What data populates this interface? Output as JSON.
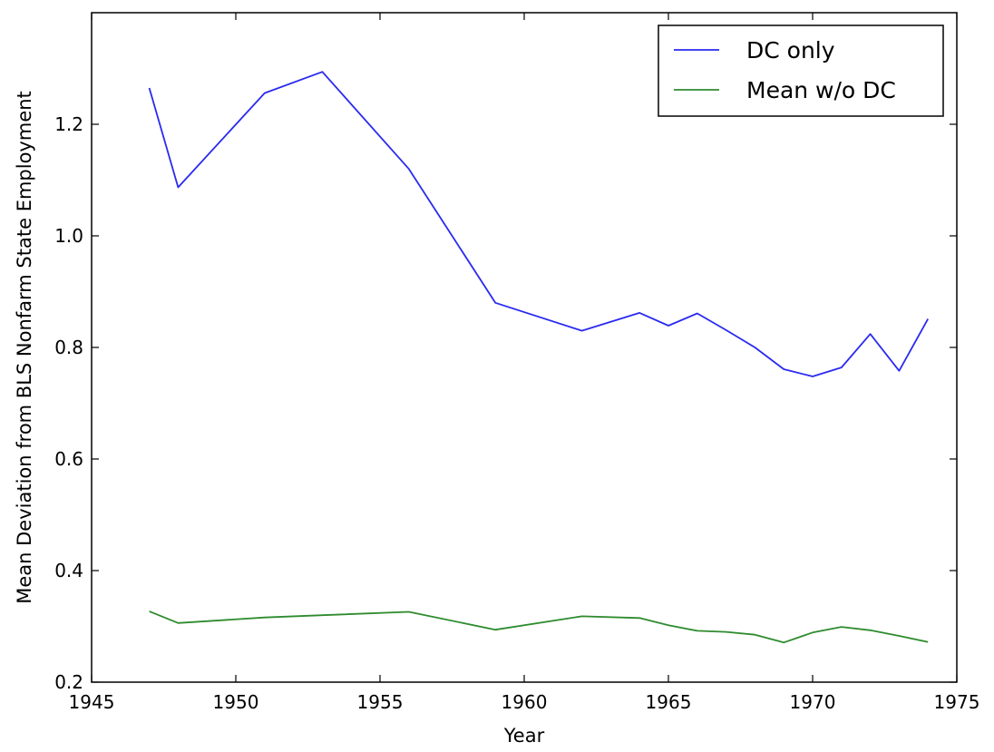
{
  "chart_data": {
    "type": "line",
    "xlabel": "Year",
    "ylabel": "Mean Deviation from BLS Nonfarm State Employment",
    "xlim": [
      1945,
      1975
    ],
    "ylim": [
      0.2,
      1.4
    ],
    "xticks": [
      1945,
      1950,
      1955,
      1960,
      1965,
      1970,
      1975
    ],
    "yticks": [
      0.2,
      0.4,
      0.6,
      0.8,
      1.0,
      1.2
    ],
    "ytick_labels": [
      "0.2",
      "0.4",
      "0.6",
      "0.8",
      "1.0",
      "1.2"
    ],
    "grid": false,
    "legend": "top-right",
    "series": [
      {
        "name": "DC only",
        "color": "#2a2af0",
        "x": [
          1947,
          1948,
          1951,
          1953,
          1956,
          1959,
          1962,
          1964,
          1965,
          1966,
          1967,
          1968,
          1969,
          1970,
          1971,
          1972,
          1973,
          1974
        ],
        "y": [
          1.265,
          1.087,
          1.256,
          1.294,
          1.12,
          0.88,
          0.83,
          0.862,
          0.839,
          0.861,
          0.831,
          0.8,
          0.761,
          0.748,
          0.764,
          0.824,
          0.758,
          0.851
        ]
      },
      {
        "name": "Mean w/o DC",
        "color": "#2e8b2e",
        "x": [
          1947,
          1948,
          1951,
          1953,
          1956,
          1959,
          1962,
          1964,
          1965,
          1966,
          1967,
          1968,
          1969,
          1970,
          1971,
          1972,
          1973,
          1974
        ],
        "y": [
          0.327,
          0.306,
          0.316,
          0.32,
          0.326,
          0.294,
          0.318,
          0.315,
          0.302,
          0.292,
          0.29,
          0.285,
          0.271,
          0.289,
          0.299,
          0.293,
          0.283,
          0.272
        ]
      }
    ]
  }
}
